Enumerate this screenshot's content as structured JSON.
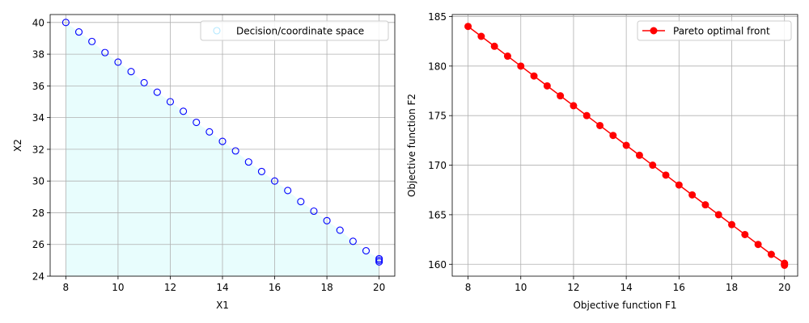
{
  "chart_data": [
    {
      "type": "scatter",
      "title": "",
      "xlabel": "X1",
      "ylabel": "X2",
      "xlim": [
        7.4,
        20.6
      ],
      "ylim": [
        24,
        40.5
      ],
      "xticks": [
        8,
        10,
        12,
        14,
        16,
        18,
        20
      ],
      "yticks": [
        24,
        26,
        28,
        30,
        32,
        34,
        36,
        38,
        40
      ],
      "grid": true,
      "legend_position": "top-right",
      "fill_under": {
        "color": "#e8fdfd"
      },
      "series": [
        {
          "name": "Decision/coordinate space",
          "marker": "hollow-circle",
          "color": "#0000ff",
          "legend_marker_color": "#b3e8ff",
          "x": [
            8,
            8.5,
            9,
            9.5,
            10,
            10.5,
            11,
            11.5,
            12,
            12.5,
            13,
            13.5,
            14,
            14.5,
            15,
            15.5,
            16,
            16.5,
            17,
            17.5,
            18,
            18.5,
            19,
            19.5,
            20,
            20,
            20
          ],
          "y": [
            40,
            39.4,
            38.8,
            38.1,
            37.5,
            36.9,
            36.2,
            35.6,
            35,
            34.4,
            33.7,
            33.1,
            32.5,
            31.9,
            31.2,
            30.6,
            30,
            29.4,
            28.7,
            28.1,
            27.5,
            26.9,
            26.2,
            25.6,
            25.1,
            25,
            24.9
          ]
        }
      ]
    },
    {
      "type": "line",
      "title": "",
      "xlabel": "Objective function F1",
      "ylabel": "Objective function F2",
      "xlim": [
        7.4,
        20.5
      ],
      "ylim": [
        158.8,
        185.2
      ],
      "xticks": [
        8,
        10,
        12,
        14,
        16,
        18,
        20
      ],
      "yticks": [
        160,
        165,
        170,
        175,
        180,
        185
      ],
      "grid": true,
      "legend_position": "top-right",
      "series": [
        {
          "name": "Pareto optimal front",
          "marker": "filled-circle",
          "color": "#ff0000",
          "x": [
            8,
            8.5,
            9,
            9.5,
            10,
            10.5,
            11,
            11.5,
            12,
            12.5,
            13,
            13.5,
            14,
            14.5,
            15,
            15.5,
            16,
            16.5,
            17,
            17.5,
            18,
            18.5,
            19,
            19.5,
            20,
            20,
            20
          ],
          "y": [
            184,
            183,
            182,
            181,
            180,
            179,
            178,
            177,
            176,
            175,
            174,
            173,
            172,
            171,
            170,
            169,
            168,
            167,
            166,
            165,
            164,
            163,
            162,
            161,
            160.1,
            160,
            159.9
          ]
        }
      ]
    }
  ]
}
